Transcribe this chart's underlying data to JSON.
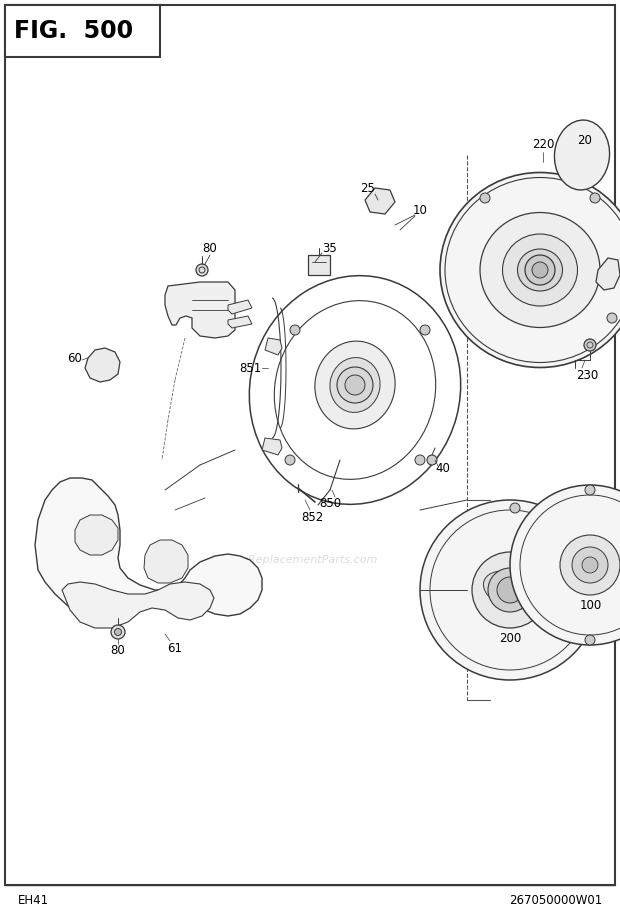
{
  "title": "FIG.  500",
  "bottom_left": "EH41",
  "bottom_right": "267050000W01",
  "bg_color": "#ffffff",
  "border_color": "#3a3a3a",
  "fig_width": 6.2,
  "fig_height": 9.22,
  "watermark": "eReplacementParts.com",
  "lc": "#3a3a3a",
  "lw": 0.7
}
